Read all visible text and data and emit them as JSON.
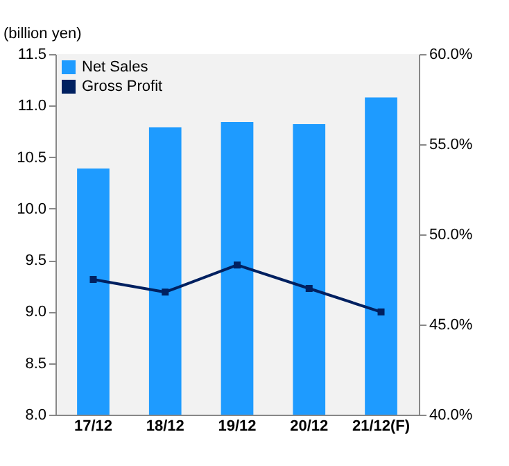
{
  "chart_data": {
    "type": "bar",
    "ylabel": "(billion yen)",
    "categories": [
      "17/12",
      "18/12",
      "19/12",
      "20/12",
      "21/12(F)"
    ],
    "series": [
      {
        "name": "Net Sales",
        "color": "#1e9bff",
        "values": [
          10.39,
          10.79,
          10.84,
          10.82,
          11.08
        ]
      },
      {
        "name": "Gross Profit",
        "type": "line",
        "axis": "y2",
        "color": "#002060",
        "marker": "square",
        "values": [
          47.5,
          46.8,
          48.3,
          47.0,
          45.7
        ]
      }
    ],
    "ylim": [
      8,
      11.5
    ],
    "yticks": [
      {
        "value": 8,
        "label": "8.0"
      },
      {
        "value": 8.5,
        "label": "8.5"
      },
      {
        "value": 9,
        "label": "9.0"
      },
      {
        "value": 9.5,
        "label": "9.5"
      },
      {
        "value": 10,
        "label": "10.0"
      },
      {
        "value": 10.5,
        "label": "10.5"
      },
      {
        "value": 11,
        "label": "11.0"
      },
      {
        "value": 11.5,
        "label": "11.5"
      }
    ],
    "y2lim": [
      40,
      60
    ],
    "y2ticks": [
      {
        "value": 40,
        "label": "40.0%"
      },
      {
        "value": 45,
        "label": "45.0%"
      },
      {
        "value": 50,
        "label": "50.0%"
      },
      {
        "value": 55,
        "label": "55.0%"
      },
      {
        "value": 60,
        "label": "60.0%"
      }
    ],
    "legend": "top left",
    "grid": false
  }
}
